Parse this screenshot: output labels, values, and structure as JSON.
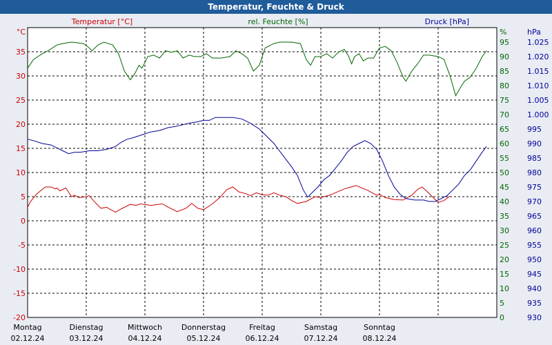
{
  "title": "Temperatur, Feuchte & Druck",
  "colors": {
    "temperature": "#cc0000",
    "humidity": "#006600",
    "pressure": "#000099",
    "titlebar": "#205b9a",
    "background": "#e9ecf3"
  },
  "chart_data": {
    "type": "line",
    "title": "Temperatur, Feuchte & Druck",
    "grid": true,
    "x": {
      "ticks": [
        {
          "day": "Montag",
          "date": "02.12.24"
        },
        {
          "day": "Dienstag",
          "date": "03.12.24"
        },
        {
          "day": "Mittwoch",
          "date": "04.12.24"
        },
        {
          "day": "Donnerstag",
          "date": "05.12.24"
        },
        {
          "day": "Freitag",
          "date": "06.12.24"
        },
        {
          "day": "Samstag",
          "date": "07.12.24"
        },
        {
          "day": "Sonntag",
          "date": "08.12.24"
        }
      ],
      "range": [
        "02.12.24",
        "09.12.24"
      ]
    },
    "axes": {
      "temperature": {
        "unit": "°C",
        "label": "Temperatur [°C]",
        "range": [
          -20,
          40
        ],
        "ticks": [
          "-20",
          "-15",
          "-10",
          "-5",
          "0",
          "5",
          "10",
          "15",
          "20",
          "25",
          "30",
          "35"
        ]
      },
      "humidity": {
        "unit": "%",
        "label": "rel. Feuchte [%]",
        "range": [
          0,
          100
        ],
        "ticks": [
          "0",
          "5",
          "10",
          "15",
          "20",
          "25",
          "30",
          "35",
          "40",
          "45",
          "50",
          "55",
          "60",
          "65",
          "70",
          "75",
          "80",
          "85",
          "90",
          "95"
        ]
      },
      "pressure": {
        "unit": "hPa",
        "label": "Druck [hPa]",
        "range": [
          930,
          1030
        ],
        "ticks": [
          "930",
          "935",
          "940",
          "945",
          "950",
          "955",
          "960",
          "965",
          "970",
          "975",
          "980",
          "985",
          "990",
          "995",
          "1.000",
          "1.005",
          "1.010",
          "1.015",
          "1.020",
          "1.025"
        ]
      }
    },
    "series": [
      {
        "name": "Temperatur [°C]",
        "axis": "temperature",
        "points": [
          [
            0,
            2.8
          ],
          [
            0.1,
            4
          ],
          [
            0.3,
            5.5
          ],
          [
            0.6,
            7
          ],
          [
            0.8,
            7
          ],
          [
            0.95,
            6.6
          ],
          [
            1.0,
            6.8
          ],
          [
            1.1,
            6.2
          ],
          [
            1.3,
            6.8
          ],
          [
            1.5,
            5
          ],
          [
            1.6,
            5.3
          ],
          [
            1.75,
            4.8
          ],
          [
            2.0,
            5
          ],
          [
            2.1,
            5.2
          ],
          [
            2.3,
            3.8
          ],
          [
            2.5,
            2.6
          ],
          [
            2.7,
            2.8
          ],
          [
            2.8,
            2.4
          ],
          [
            3.0,
            1.8
          ],
          [
            3.2,
            2.5
          ],
          [
            3.5,
            3.4
          ],
          [
            3.7,
            3.2
          ],
          [
            3.85,
            3.5
          ],
          [
            4.2,
            3.2
          ],
          [
            4.6,
            3.5
          ],
          [
            4.8,
            2.8
          ],
          [
            5.1,
            1.9
          ],
          [
            5.4,
            2.6
          ],
          [
            5.6,
            3.6
          ],
          [
            5.8,
            2.6
          ],
          [
            6.0,
            2.3
          ],
          [
            6.3,
            3.5
          ],
          [
            6.55,
            4.8
          ],
          [
            6.8,
            6.5
          ],
          [
            7.0,
            7
          ],
          [
            7.2,
            6
          ],
          [
            7.45,
            5.6
          ],
          [
            7.6,
            5.2
          ],
          [
            7.8,
            5.8
          ],
          [
            8.0,
            5.4
          ],
          [
            8.2,
            5.3
          ],
          [
            8.4,
            5.8
          ],
          [
            8.6,
            5.3
          ],
          [
            8.8,
            5
          ],
          [
            9.0,
            4.2
          ],
          [
            9.2,
            3.6
          ],
          [
            9.5,
            4
          ],
          [
            9.8,
            5
          ],
          [
            10.0,
            4.8
          ],
          [
            10.3,
            5.3
          ],
          [
            10.8,
            6.6
          ],
          [
            11.2,
            7.3
          ],
          [
            11.6,
            6.3
          ],
          [
            11.9,
            5.3
          ],
          [
            12.0,
            5.5
          ],
          [
            12.2,
            4.8
          ],
          [
            12.5,
            4.4
          ],
          [
            12.8,
            4.3
          ],
          [
            13.1,
            5.3
          ],
          [
            13.3,
            6.5
          ],
          [
            13.45,
            7
          ],
          [
            13.6,
            6.2
          ],
          [
            13.8,
            5
          ],
          [
            14.0,
            3.8
          ],
          [
            14.2,
            4.2
          ],
          [
            14.4,
            5.1
          ]
        ]
      },
      {
        "name": "rel. Feuchte [%]",
        "axis": "humidity",
        "points": [
          [
            0,
            86
          ],
          [
            0.2,
            89
          ],
          [
            0.5,
            91
          ],
          [
            0.7,
            92
          ],
          [
            1.0,
            94
          ],
          [
            1.2,
            94.5
          ],
          [
            1.5,
            95
          ],
          [
            1.9,
            94.5
          ],
          [
            2.1,
            93
          ],
          [
            2.2,
            92
          ],
          [
            2.4,
            94
          ],
          [
            2.6,
            95
          ],
          [
            2.9,
            94
          ],
          [
            3.1,
            91
          ],
          [
            3.3,
            85
          ],
          [
            3.5,
            82
          ],
          [
            3.65,
            84
          ],
          [
            3.8,
            87
          ],
          [
            3.9,
            86
          ],
          [
            4.1,
            90
          ],
          [
            4.3,
            90.5
          ],
          [
            4.5,
            89.5
          ],
          [
            4.7,
            92
          ],
          [
            4.9,
            91.5
          ],
          [
            5.1,
            92
          ],
          [
            5.3,
            89.5
          ],
          [
            5.5,
            90.5
          ],
          [
            5.7,
            90
          ],
          [
            5.9,
            90
          ],
          [
            6.1,
            91
          ],
          [
            6.3,
            89.5
          ],
          [
            6.6,
            89.5
          ],
          [
            6.9,
            90
          ],
          [
            7.1,
            92
          ],
          [
            7.3,
            91
          ],
          [
            7.5,
            89.5
          ],
          [
            7.7,
            85
          ],
          [
            7.9,
            87
          ],
          [
            8.1,
            93
          ],
          [
            8.4,
            94.5
          ],
          [
            8.6,
            95
          ],
          [
            9.0,
            95
          ],
          [
            9.3,
            94.5
          ],
          [
            9.5,
            89
          ],
          [
            9.65,
            87
          ],
          [
            9.8,
            90
          ],
          [
            10.0,
            90
          ],
          [
            10.2,
            91
          ],
          [
            10.4,
            89.5
          ],
          [
            10.6,
            91.5
          ],
          [
            10.8,
            92.5
          ],
          [
            10.95,
            90
          ],
          [
            11.05,
            87.5
          ],
          [
            11.15,
            90
          ],
          [
            11.3,
            91
          ],
          [
            11.45,
            88.5
          ],
          [
            11.6,
            89.5
          ],
          [
            11.8,
            89.5
          ],
          [
            12.0,
            93
          ],
          [
            12.2,
            93.5
          ],
          [
            12.4,
            92
          ],
          [
            12.6,
            88
          ],
          [
            12.8,
            83
          ],
          [
            12.9,
            81.5
          ],
          [
            13.1,
            85
          ],
          [
            13.3,
            87.5
          ],
          [
            13.5,
            90.5
          ],
          [
            13.7,
            90.5
          ],
          [
            14.0,
            90
          ],
          [
            14.2,
            89
          ],
          [
            14.4,
            83.5
          ],
          [
            14.6,
            76.5
          ],
          [
            14.8,
            80
          ],
          [
            14.9,
            81.5
          ],
          [
            15.1,
            83
          ],
          [
            15.3,
            86
          ],
          [
            15.5,
            90
          ],
          [
            15.65,
            92
          ]
        ]
      },
      {
        "name": "Druck [hPa]",
        "axis": "pressure",
        "points": [
          [
            0,
            991.5
          ],
          [
            0.2,
            991
          ],
          [
            0.5,
            990
          ],
          [
            0.8,
            989.5
          ],
          [
            1.0,
            988.5
          ],
          [
            1.2,
            987.5
          ],
          [
            1.4,
            986.5
          ],
          [
            1.6,
            987
          ],
          [
            1.8,
            987
          ],
          [
            2.1,
            987.5
          ],
          [
            2.4,
            987.5
          ],
          [
            2.7,
            988
          ],
          [
            3.0,
            989
          ],
          [
            3.2,
            990.5
          ],
          [
            3.4,
            991.5
          ],
          [
            3.6,
            992
          ],
          [
            3.9,
            993
          ],
          [
            4.2,
            994
          ],
          [
            4.5,
            994.5
          ],
          [
            4.8,
            995.5
          ],
          [
            5.1,
            996
          ],
          [
            5.3,
            996.5
          ],
          [
            5.5,
            997
          ],
          [
            5.8,
            997.5
          ],
          [
            6.0,
            998
          ],
          [
            6.2,
            998
          ],
          [
            6.4,
            999
          ],
          [
            6.6,
            999
          ],
          [
            7.0,
            999
          ],
          [
            7.3,
            998.5
          ],
          [
            7.6,
            997
          ],
          [
            7.9,
            995
          ],
          [
            8.1,
            993
          ],
          [
            8.4,
            990
          ],
          [
            8.7,
            986
          ],
          [
            9.0,
            982
          ],
          [
            9.2,
            979
          ],
          [
            9.4,
            974
          ],
          [
            9.55,
            971.5
          ],
          [
            9.7,
            973
          ],
          [
            9.9,
            975
          ],
          [
            10.1,
            977.5
          ],
          [
            10.3,
            979
          ],
          [
            10.5,
            981.5
          ],
          [
            10.7,
            984
          ],
          [
            10.9,
            987
          ],
          [
            11.1,
            989
          ],
          [
            11.3,
            990
          ],
          [
            11.5,
            991
          ],
          [
            11.7,
            990
          ],
          [
            11.9,
            988
          ],
          [
            12.1,
            984
          ],
          [
            12.3,
            979
          ],
          [
            12.5,
            975
          ],
          [
            12.7,
            972.5
          ],
          [
            12.9,
            971
          ],
          [
            13.2,
            970.5
          ],
          [
            13.5,
            970.5
          ],
          [
            13.7,
            970
          ],
          [
            13.9,
            970
          ],
          [
            14.1,
            971
          ],
          [
            14.3,
            972
          ],
          [
            14.5,
            974
          ],
          [
            14.7,
            976
          ],
          [
            14.9,
            979
          ],
          [
            15.1,
            981
          ],
          [
            15.3,
            984
          ],
          [
            15.5,
            987
          ],
          [
            15.65,
            989
          ]
        ]
      }
    ]
  }
}
